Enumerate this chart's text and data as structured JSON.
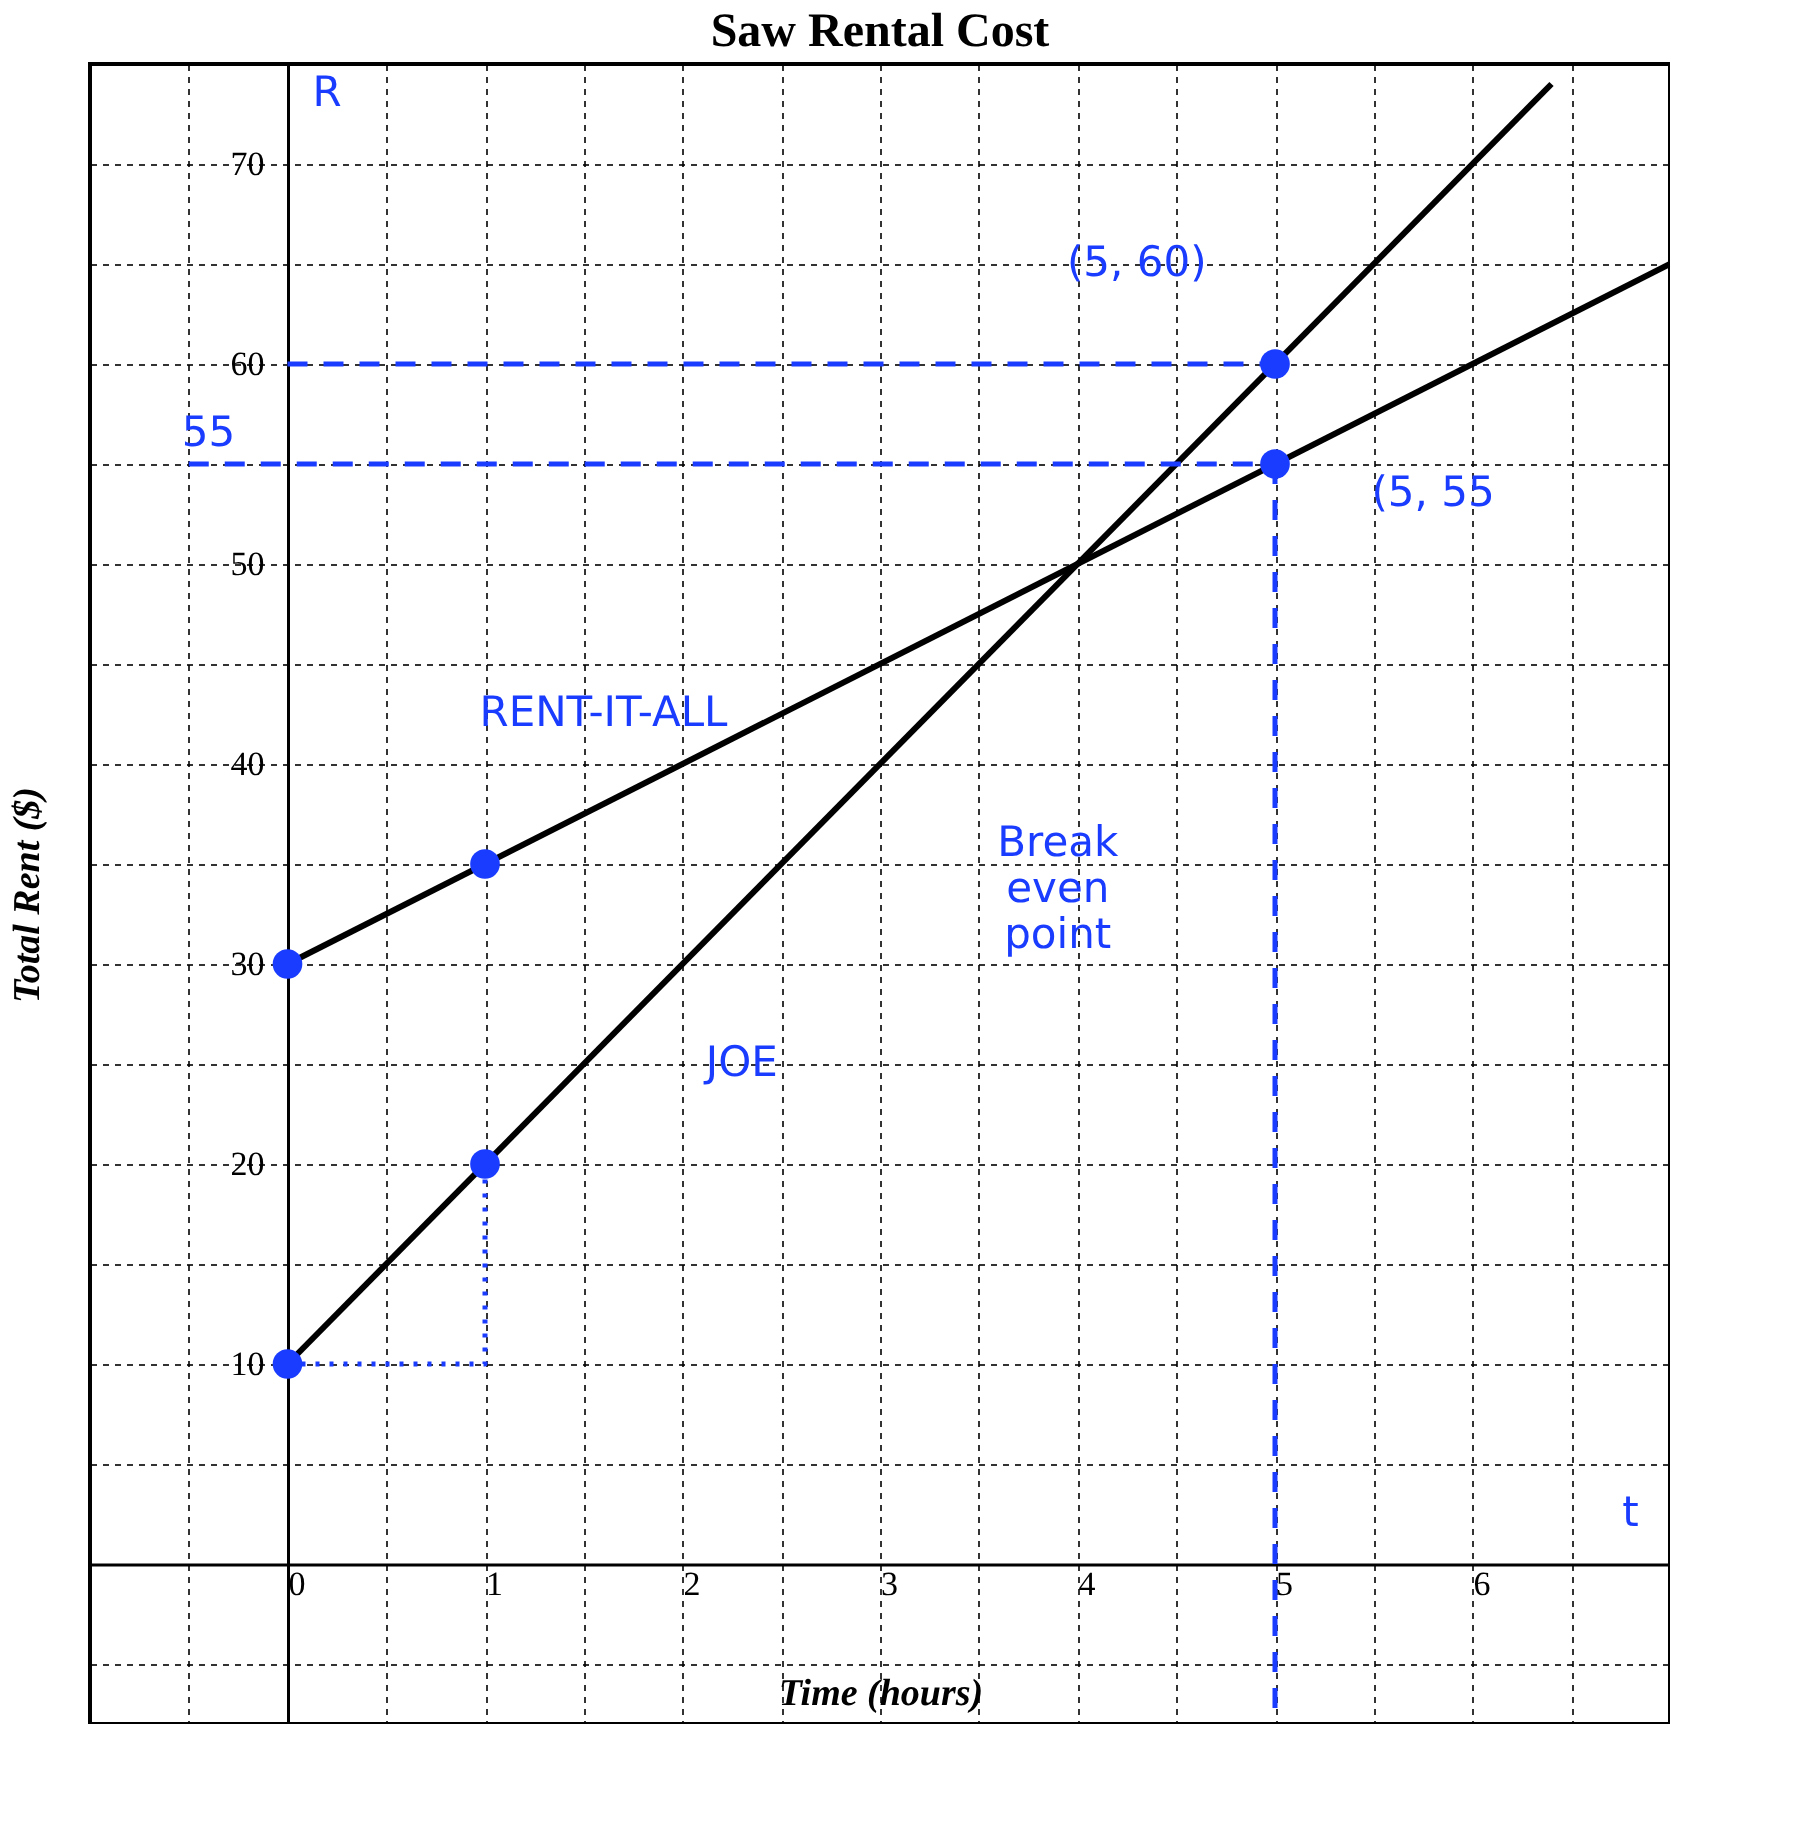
{
  "chart_data": {
    "type": "line",
    "title": "Saw Rental Cost",
    "xlabel": "Time (hours)",
    "ylabel": "Total Rent ($)",
    "xlim": [
      -1,
      7
    ],
    "ylim": [
      -8,
      75
    ],
    "xticks": [
      {
        "value": -1,
        "label": null
      },
      {
        "value": -0.5,
        "label": null
      },
      0,
      {
        "value": 0.5,
        "label": null
      },
      1,
      {
        "value": 1.5,
        "label": null
      },
      2,
      {
        "value": 2.5,
        "label": null
      },
      3,
      {
        "value": 3.5,
        "label": null
      },
      4,
      {
        "value": 4.5,
        "label": null
      },
      5,
      {
        "value": 5.5,
        "label": null
      },
      6,
      {
        "value": 6.5,
        "label": null
      }
    ],
    "yticks": [
      {
        "value": -5,
        "label": null
      },
      {
        "value": 5,
        "label": null
      },
      10,
      {
        "value": 15,
        "label": null
      },
      20,
      {
        "value": 25,
        "label": null
      },
      30,
      {
        "value": 35,
        "label": null
      },
      40,
      {
        "value": 45,
        "label": null
      },
      50,
      {
        "value": 55,
        "label": null
      },
      60,
      {
        "value": 65,
        "label": null
      },
      70
    ],
    "grid": true,
    "series": [
      {
        "type": "line",
        "color": "#000000",
        "x": [
          0,
          6.4
        ],
        "values": [
          10,
          74
        ]
      },
      {
        "type": "line",
        "color": "#000000",
        "x": [
          0,
          7
        ],
        "values": [
          30,
          65
        ]
      },
      {
        "type": "scatter",
        "marker": "circle",
        "color": "#1a3cff",
        "x": [
          0,
          1,
          0,
          1,
          5,
          5
        ],
        "values": [
          30,
          35,
          10,
          20,
          60,
          55
        ]
      },
      {
        "type": "line",
        "line_style": "dashed",
        "color": "#1a3cff",
        "x": [
          0,
          5
        ],
        "values": [
          60,
          60
        ]
      },
      {
        "type": "line",
        "line_style": "dashed",
        "color": "#1a3cff",
        "x": [
          -0.5,
          5
        ],
        "values": [
          55,
          55
        ]
      },
      {
        "type": "line",
        "line_style": "dashed",
        "color": "#1a3cff",
        "x": [
          5,
          5
        ],
        "values": [
          55,
          -8
        ]
      },
      {
        "type": "line",
        "line_style": "dotted",
        "color": "#1a3cff",
        "x": [
          0,
          1,
          1
        ],
        "values": [
          10,
          10,
          20
        ]
      }
    ],
    "annotations": [
      "(5, 60)",
      "(5, 55",
      "55",
      "RENT-IT-ALL",
      "JOE",
      "Break\neven\npoint",
      "R",
      "t"
    ]
  }
}
